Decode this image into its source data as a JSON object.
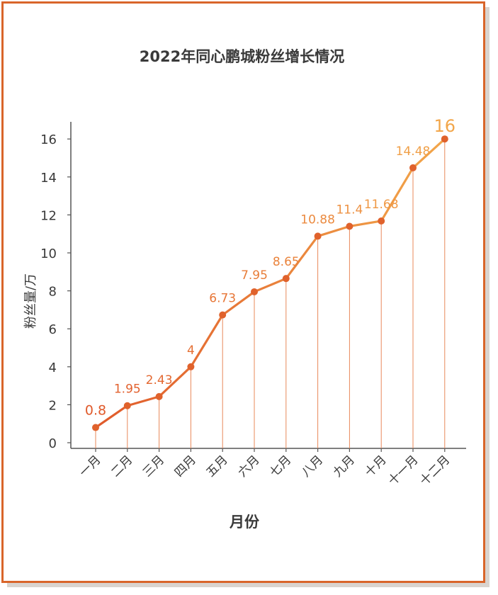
{
  "chart_data": {
    "type": "line",
    "title": "2022年同心鹏城粉丝增长情况",
    "xlabel": "月份",
    "ylabel": "粉丝量/万",
    "categories": [
      "一月",
      "二月",
      "三月",
      "四月",
      "五月",
      "六月",
      "七月",
      "八月",
      "九月",
      "十月",
      "十一月",
      "十二月"
    ],
    "values": [
      0.8,
      1.95,
      2.43,
      4,
      6.73,
      7.95,
      8.65,
      10.88,
      11.4,
      11.68,
      14.48,
      16
    ],
    "value_labels": [
      "0.8",
      "1.95",
      "2.43",
      "4",
      "6.73",
      "7.95",
      "8.65",
      "10.88",
      "11.4",
      "11.68",
      "14.48",
      "16"
    ],
    "y_ticks": [
      "0",
      "2",
      "4",
      "6",
      "8",
      "10",
      "12",
      "14",
      "16"
    ],
    "ylim": [
      0,
      16
    ],
    "grid": false,
    "legend": "none",
    "colors": {
      "line_start": "#e05a2b",
      "line_end": "#f2a64a",
      "frame": "#d9652a",
      "axis": "#555555",
      "text": "#3a3a3a"
    }
  }
}
